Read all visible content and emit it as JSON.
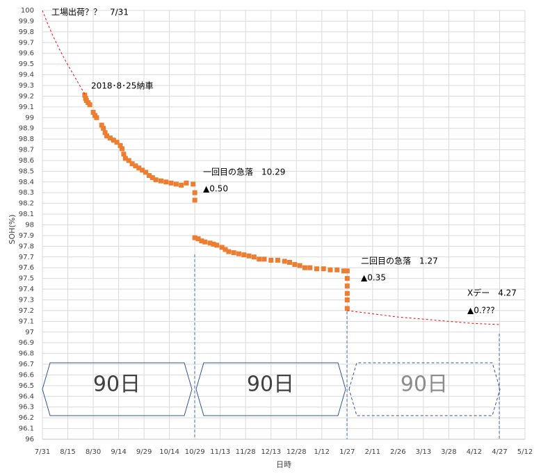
{
  "chart_data": {
    "type": "scatter",
    "x_label": "日時",
    "y_label": "SOH(%)",
    "xlim": [
      0,
      285
    ],
    "xticks": [
      {
        "value": 0,
        "label": "7/31"
      },
      {
        "value": 15,
        "label": "8/15"
      },
      {
        "value": 30,
        "label": "8/30"
      },
      {
        "value": 45,
        "label": "9/14"
      },
      {
        "value": 60,
        "label": "9/29"
      },
      {
        "value": 75,
        "label": "10/14"
      },
      {
        "value": 90,
        "label": "10/29"
      },
      {
        "value": 105,
        "label": "11/13"
      },
      {
        "value": 120,
        "label": "11/28"
      },
      {
        "value": 135,
        "label": "12/13"
      },
      {
        "value": 150,
        "label": "12/28"
      },
      {
        "value": 165,
        "label": "1/12"
      },
      {
        "value": 180,
        "label": "1/27"
      },
      {
        "value": 195,
        "label": "2/11"
      },
      {
        "value": 210,
        "label": "2/26"
      },
      {
        "value": 225,
        "label": "3/13"
      },
      {
        "value": 240,
        "label": "3/28"
      },
      {
        "value": 255,
        "label": "4/12"
      },
      {
        "value": 270,
        "label": "4/27"
      },
      {
        "value": 285,
        "label": "5/12"
      }
    ],
    "ylim": [
      96,
      100
    ],
    "yticks": [
      96,
      96.1,
      96.2,
      96.3,
      96.4,
      96.5,
      96.6,
      96.7,
      96.8,
      96.9,
      97,
      97.1,
      97.2,
      97.3,
      97.4,
      97.5,
      97.6,
      97.7,
      97.8,
      97.9,
      98,
      98.1,
      98.2,
      98.3,
      98.4,
      98.5,
      98.6,
      98.7,
      98.8,
      98.9,
      99,
      99.1,
      99.2,
      99.3,
      99.4,
      99.5,
      99.6,
      99.7,
      99.8,
      99.9,
      100
    ],
    "grid": true,
    "series": [
      {
        "color": "#ed7d31",
        "marker": "square",
        "x": [
          25,
          25.5,
          26,
          27,
          28,
          30,
          31,
          32,
          35,
          36,
          37,
          38,
          40,
          42,
          44,
          46,
          47,
          48,
          49,
          51,
          53,
          55,
          57,
          59,
          61,
          63,
          65,
          67,
          70,
          73,
          76,
          79,
          82,
          85,
          89,
          90,
          90,
          90,
          92,
          94,
          96,
          99,
          101,
          103,
          106,
          108,
          110,
          113,
          116,
          119,
          122,
          125,
          128,
          131,
          135,
          139,
          143,
          146,
          149,
          152,
          155,
          158,
          162,
          166,
          170,
          174,
          178,
          180,
          180,
          180,
          180,
          180,
          180
        ],
        "values": [
          99.21,
          99.18,
          99.16,
          99.14,
          99.12,
          99.05,
          99.02,
          99.0,
          98.93,
          98.9,
          98.86,
          98.83,
          98.81,
          98.79,
          98.77,
          98.74,
          98.71,
          98.66,
          98.62,
          98.6,
          98.57,
          98.55,
          98.53,
          98.51,
          98.49,
          98.46,
          98.44,
          98.42,
          98.41,
          98.4,
          98.39,
          98.38,
          98.37,
          98.39,
          98.38,
          98.3,
          98.23,
          97.88,
          97.87,
          97.85,
          97.84,
          97.83,
          97.82,
          97.81,
          97.79,
          97.77,
          97.75,
          97.74,
          97.73,
          97.72,
          97.71,
          97.7,
          97.68,
          97.68,
          97.67,
          97.67,
          97.66,
          97.65,
          97.63,
          97.62,
          97.6,
          97.6,
          97.59,
          97.59,
          97.58,
          97.58,
          97.57,
          97.57,
          97.5,
          97.43,
          97.36,
          97.3,
          97.22
        ]
      },
      {
        "color": "#ff0000",
        "marker": "dashed-line",
        "x": [
          0,
          3,
          6,
          10,
          14,
          18,
          22,
          25
        ],
        "values": [
          100,
          99.88,
          99.77,
          99.64,
          99.52,
          99.41,
          99.3,
          99.22
        ]
      },
      {
        "color": "#ff0000",
        "marker": "dashed-line",
        "x": [
          180,
          195,
          210,
          225,
          240,
          255,
          270
        ],
        "values": [
          97.2,
          97.17,
          97.14,
          97.12,
          97.1,
          97.08,
          97.07
        ]
      }
    ],
    "annotations": [
      "工場出荷？？　7/31",
      "2018･8･25納車",
      "一回目の急落　10.29",
      "▲0.50",
      "二回目の急落　1.27",
      "▲0.35",
      "Xデー　4.27",
      "▲0.???"
    ],
    "periods": [
      "90日",
      "90日",
      "90日"
    ]
  }
}
